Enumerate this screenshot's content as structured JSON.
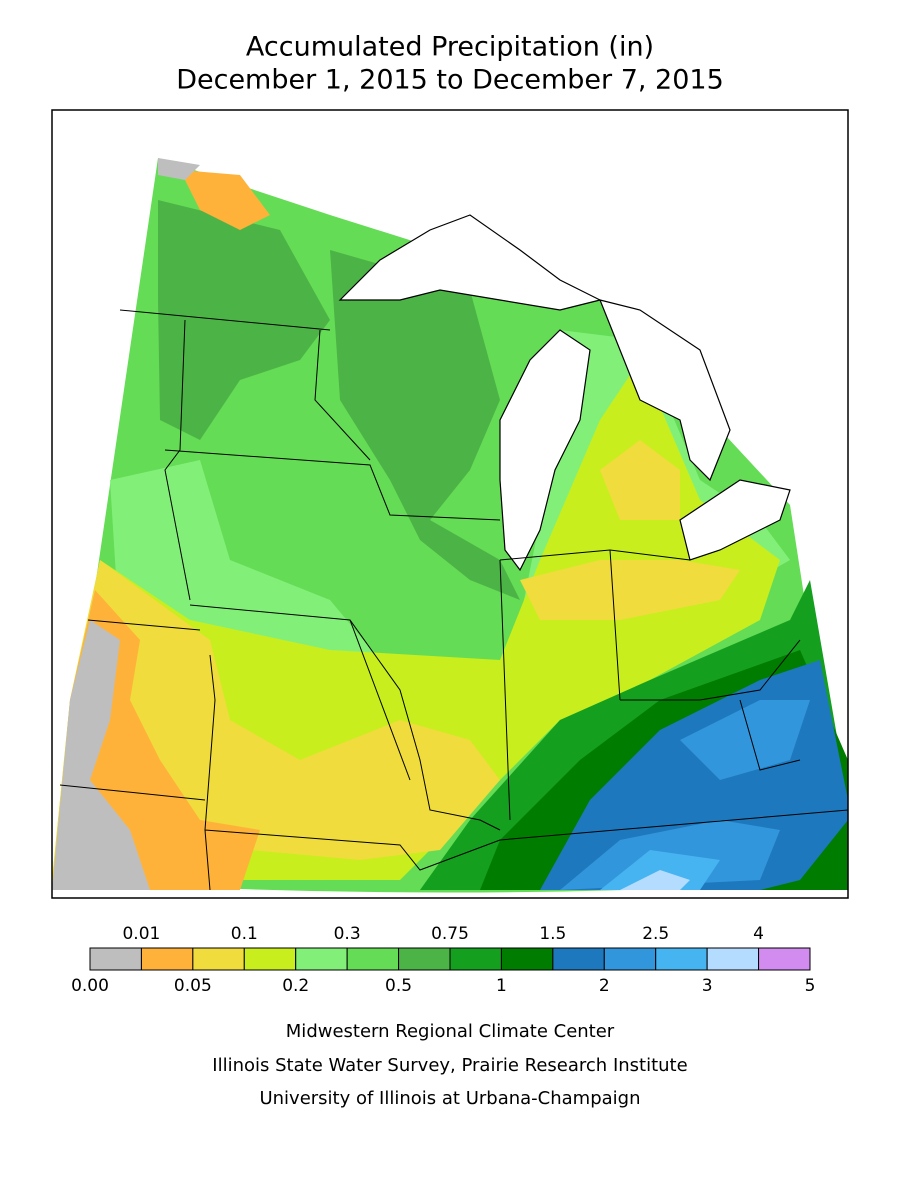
{
  "title": {
    "line1": "Accumulated Precipitation (in)",
    "line2": "December 1, 2015 to December 7, 2015"
  },
  "legend": {
    "boundaries": [
      "0.00",
      "0.01",
      "0.05",
      "0.1",
      "0.2",
      "0.3",
      "0.5",
      "0.75",
      "1",
      "1.5",
      "2",
      "2.5",
      "3",
      "4",
      "5"
    ],
    "colors": [
      "#bebebe",
      "#ffb23a",
      "#f0dc3c",
      "#c8ee1e",
      "#82f078",
      "#64dc55",
      "#4cb446",
      "#14a01e",
      "#007d00",
      "#1e78be",
      "#3296dc",
      "#46b4f0",
      "#b4dcff",
      "#d28cf0"
    ]
  },
  "credits": [
    "Midwestern Regional Climate Center",
    "Illinois State Water Survey, Prairie Research Institute",
    "University of Illinois at Urbana-Champaign"
  ]
}
